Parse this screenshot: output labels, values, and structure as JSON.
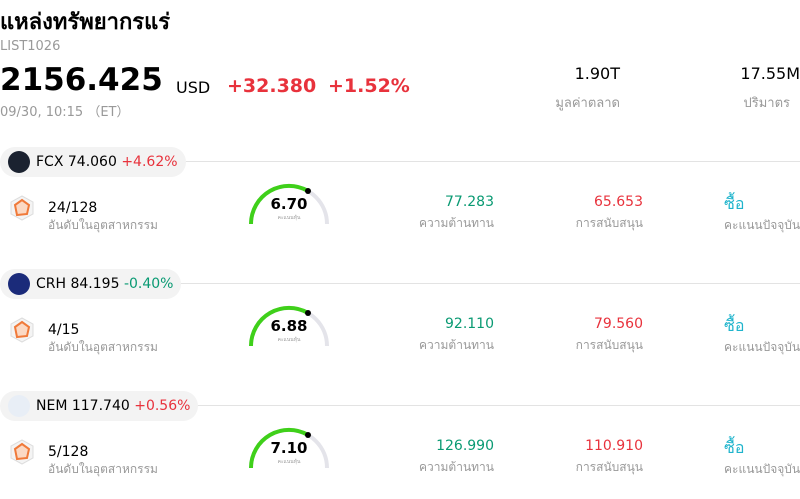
{
  "header": {
    "title": "แหล่งทรัพยากรแร่",
    "code": "LIST1026",
    "price": "2156.425",
    "currency": "USD",
    "change": "+32.380",
    "change_pct": "+1.52%",
    "time": "09/30, 10:15 （ET）",
    "stats": [
      {
        "value": "1.90T",
        "label": "มูลค่าตลาด"
      },
      {
        "value": "17.55M",
        "label": "ปริมาตร"
      }
    ]
  },
  "stocks": [
    {
      "symbol": "FCX",
      "price": "74.060",
      "change": "+4.62%",
      "rank": "24/128",
      "rank_label": "อันดับในอุตสาหกรรม",
      "score": "6.70",
      "score_label": "คะแนนหุ้น",
      "resistance": "77.283",
      "resistance_label": "ความต้านทาน",
      "support": "65.653",
      "support_label": "การสนับสนุน",
      "signal": "ซื้อ",
      "signal_label": "คะแนนปัจจุบัน"
    },
    {
      "symbol": "CRH",
      "price": "84.195",
      "change": "-0.40%",
      "rank": "4/15",
      "rank_label": "อันดับในอุตสาหกรรม",
      "score": "6.88",
      "score_label": "คะแนนหุ้น",
      "resistance": "92.110",
      "resistance_label": "ความต้านทาน",
      "support": "79.560",
      "support_label": "การสนับสนุน",
      "signal": "ซื้อ",
      "signal_label": "คะแนนปัจจุบัน"
    },
    {
      "symbol": "NEM",
      "price": "117.740",
      "change": "+0.56%",
      "rank": "5/128",
      "rank_label": "อันดับในอุตสาหกรรม",
      "score": "7.10",
      "score_label": "คะแนนหุ้น",
      "resistance": "126.990",
      "resistance_label": "ความต้านทาน",
      "support": "110.910",
      "support_label": "การสนับสนุน",
      "signal": "ซื้อ",
      "signal_label": "คะแนนปัจจุบัน"
    }
  ]
}
